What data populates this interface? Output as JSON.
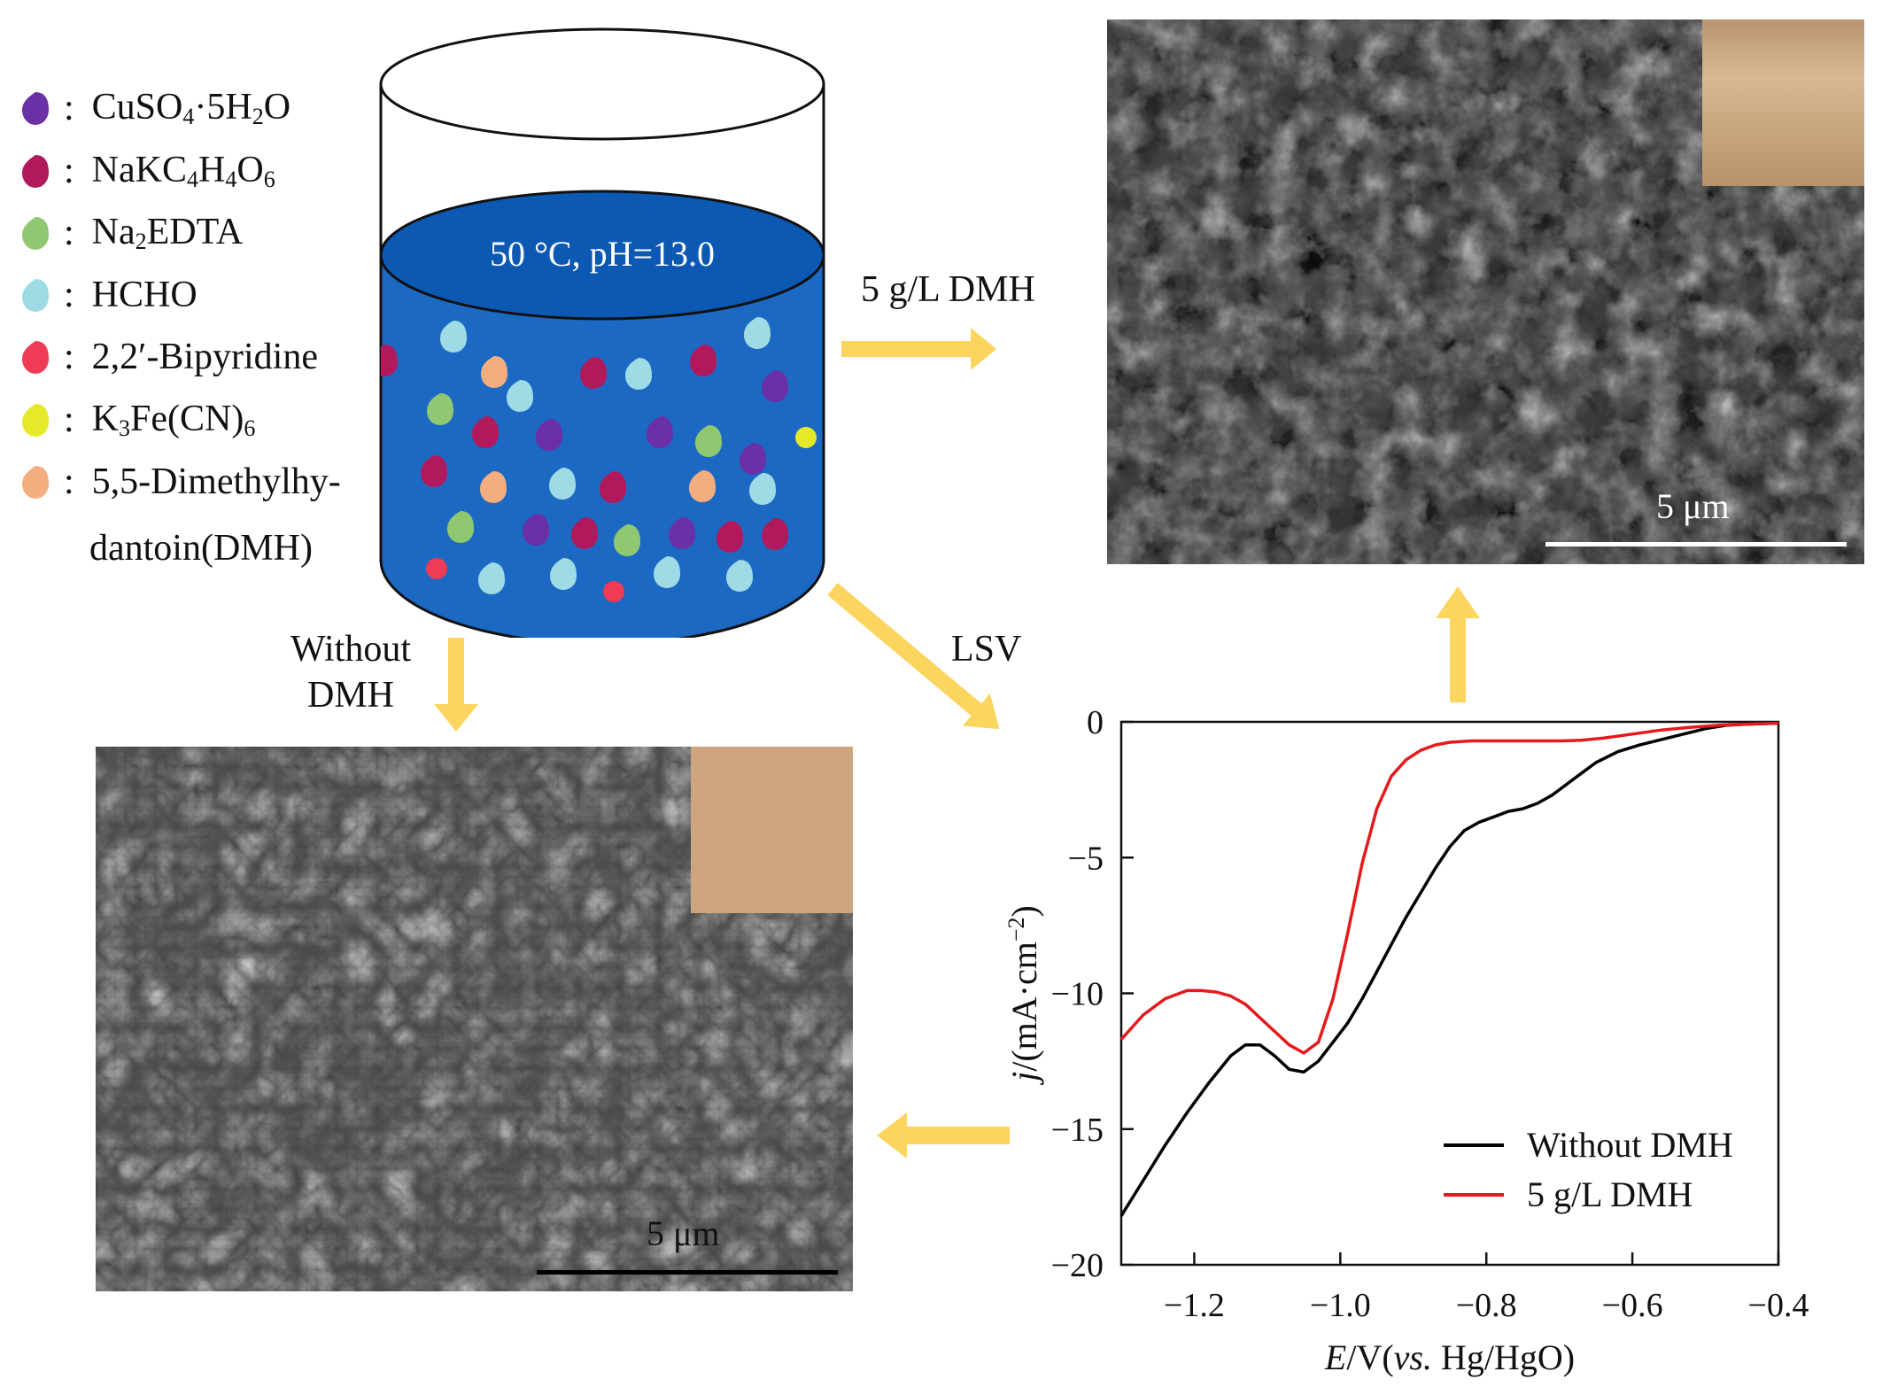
{
  "legend": [
    {
      "pre": "CuSO",
      "s1": "4",
      "mid": "·5H",
      "s2": "2",
      "post": "O",
      "color": "#6b2fa6"
    },
    {
      "pre": "NaKC",
      "s1": "4",
      "mid": "H",
      "s2": "4",
      "mid2": "O",
      "s3": "6",
      "post": "",
      "color": "#b01a5c"
    },
    {
      "pre": "Na",
      "s1": "2",
      "mid": "EDTA",
      "color": "#8fc870"
    },
    {
      "pre": "HCHO",
      "color": "#9fdbe4"
    },
    {
      "pre": "2,2′-Bipyridine",
      "color": "#ef3b55"
    },
    {
      "pre": "K",
      "s1": "3",
      "mid": "Fe(CN)",
      "s2": "6",
      "color": "#e6e82a"
    },
    {
      "pre": "5,5-Dimethylhy-",
      "color": "#f3ad7f"
    }
  ],
  "legend_continuation": "dantoin(DMH)",
  "legend_colon": ":",
  "beaker": {
    "condition": "50 °C, pH=13.0"
  },
  "arrows": {
    "right_label": "5 g/L DMH",
    "down_label_1": "Without",
    "down_label_2": "DMH",
    "diag_label": "LSV"
  },
  "sem_top": {
    "scale_text": "5 μm"
  },
  "sem_bottom": {
    "scale_text": "5 μm"
  },
  "chart_data": {
    "type": "line",
    "xlabel_parts": {
      "e": "E",
      "rest": "/V(",
      "vs": "vs.",
      "tail": " Hg/HgO)"
    },
    "ylabel_parts": {
      "j": "j",
      "rest": "/(mA·cm",
      "sup": "−2",
      "tail": ")"
    },
    "xlim": [
      -1.3,
      -0.4
    ],
    "ylim": [
      -20,
      0
    ],
    "x_ticks": [
      "−1.2",
      "−1.0",
      "−0.8",
      "−0.6",
      "−0.4"
    ],
    "y_ticks": [
      "0",
      "−5",
      "−10",
      "−15",
      "−20"
    ],
    "x_tick_values": [
      -1.2,
      -1.0,
      -0.8,
      -0.6,
      -0.4
    ],
    "y_tick_values": [
      0,
      -5,
      -10,
      -15,
      -20
    ],
    "legend_position": "bottom-right",
    "series": [
      {
        "name": "Without DMH",
        "color": "#000000",
        "x": [
          -1.3,
          -1.27,
          -1.24,
          -1.21,
          -1.18,
          -1.15,
          -1.13,
          -1.11,
          -1.09,
          -1.07,
          -1.05,
          -1.03,
          -1.01,
          -0.99,
          -0.97,
          -0.95,
          -0.93,
          -0.91,
          -0.89,
          -0.87,
          -0.85,
          -0.83,
          -0.81,
          -0.79,
          -0.77,
          -0.75,
          -0.73,
          -0.71,
          -0.69,
          -0.67,
          -0.65,
          -0.62,
          -0.59,
          -0.56,
          -0.53,
          -0.5,
          -0.47,
          -0.44,
          -0.4
        ],
        "y": [
          -18.2,
          -16.9,
          -15.6,
          -14.4,
          -13.3,
          -12.3,
          -11.9,
          -11.9,
          -12.3,
          -12.8,
          -12.9,
          -12.5,
          -11.8,
          -11.1,
          -10.2,
          -9.2,
          -8.2,
          -7.2,
          -6.3,
          -5.4,
          -4.6,
          -4.0,
          -3.7,
          -3.5,
          -3.3,
          -3.2,
          -3.0,
          -2.7,
          -2.3,
          -1.9,
          -1.5,
          -1.1,
          -0.85,
          -0.65,
          -0.45,
          -0.25,
          -0.12,
          -0.08,
          -0.05
        ]
      },
      {
        "name": "5 g/L DMH",
        "color": "#e41a1c",
        "x": [
          -1.3,
          -1.27,
          -1.24,
          -1.21,
          -1.19,
          -1.17,
          -1.15,
          -1.13,
          -1.11,
          -1.09,
          -1.07,
          -1.05,
          -1.03,
          -1.01,
          -0.99,
          -0.97,
          -0.95,
          -0.93,
          -0.91,
          -0.89,
          -0.87,
          -0.85,
          -0.82,
          -0.79,
          -0.76,
          -0.73,
          -0.7,
          -0.67,
          -0.64,
          -0.6,
          -0.56,
          -0.52,
          -0.48,
          -0.44,
          -0.4
        ],
        "y": [
          -11.7,
          -10.8,
          -10.2,
          -9.9,
          -9.9,
          -9.95,
          -10.1,
          -10.4,
          -10.9,
          -11.4,
          -11.9,
          -12.2,
          -11.8,
          -10.2,
          -7.8,
          -5.2,
          -3.2,
          -2.0,
          -1.4,
          -1.05,
          -0.85,
          -0.75,
          -0.7,
          -0.7,
          -0.7,
          -0.7,
          -0.7,
          -0.68,
          -0.6,
          -0.45,
          -0.3,
          -0.2,
          -0.12,
          -0.08,
          -0.05
        ]
      }
    ]
  }
}
